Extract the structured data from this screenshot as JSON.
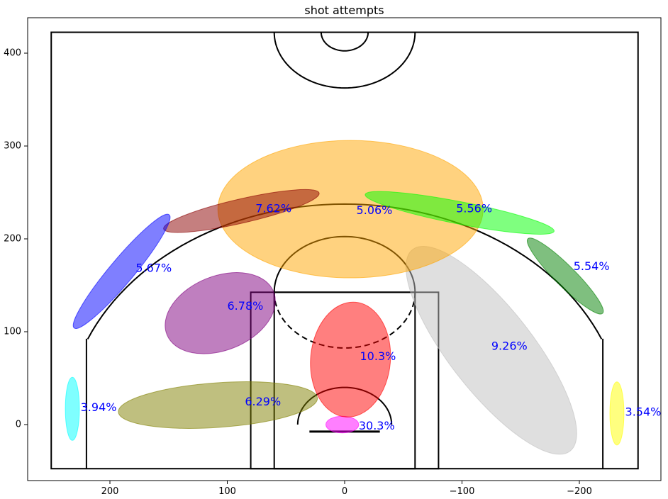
{
  "chart_data": {
    "type": "scatter",
    "title": "shot attempts",
    "xlabel": "",
    "ylabel": "",
    "xlim": [
      270,
      -270
    ],
    "ylim": [
      -60,
      440
    ],
    "x_ticks": [
      200,
      100,
      0,
      -100,
      -200
    ],
    "x_tick_labels": [
      "200",
      "100",
      "0",
      "−100",
      "−200"
    ],
    "y_ticks": [
      0,
      100,
      200,
      300,
      400
    ],
    "y_tick_labels": [
      "0",
      "100",
      "200",
      "300",
      "400"
    ],
    "grid": false,
    "label_color": "#0000ff",
    "zones": [
      {
        "label": "30.3%",
        "cx": 2,
        "cy": 0,
        "rx": 14,
        "ry": 9,
        "angle": 0,
        "color": "#ff00ff"
      },
      {
        "label": "10.3%",
        "cx": -5,
        "cy": 70,
        "rx": 34,
        "ry": 62,
        "angle": -5,
        "color": "#ff0000"
      },
      {
        "label": "6.29%",
        "cx": 108,
        "cy": 21,
        "rx": 85,
        "ry": 24,
        "angle": 4,
        "color": "#808000"
      },
      {
        "label": "6.78%",
        "cx": 106,
        "cy": 120,
        "rx": 49,
        "ry": 40,
        "angle": 22,
        "color": "#800080"
      },
      {
        "label": "9.26%",
        "cx": -125,
        "cy": 80,
        "rx": 109,
        "ry": 45,
        "angle": -52,
        "color": "#c0c0c0"
      },
      {
        "label": "5.06%",
        "cx": -5,
        "cy": 232,
        "rx": 113,
        "ry": 74,
        "angle": 0,
        "color": "#ffa500"
      },
      {
        "label": "7.62%",
        "cx": 88,
        "cy": 230,
        "rx": 68,
        "ry": 13,
        "angle": 13,
        "color": "#8b0000"
      },
      {
        "label": "5.56%",
        "cx": -98,
        "cy": 228,
        "rx": 82,
        "ry": 12,
        "angle": -11,
        "color": "#00ff00"
      },
      {
        "label": "5.67%",
        "cx": 190,
        "cy": 165,
        "rx": 63,
        "ry": 13,
        "angle": 50,
        "color": "#0000ff"
      },
      {
        "label": "5.54%",
        "cx": -188,
        "cy": 160,
        "rx": 45,
        "ry": 11,
        "angle": -45,
        "color": "#008000"
      },
      {
        "label": "3.94%",
        "cx": 232,
        "cy": 17,
        "rx": 6,
        "ry": 34,
        "angle": 0,
        "color": "#00ffff"
      },
      {
        "label": "3.54%",
        "cx": -232,
        "cy": 12,
        "rx": 6,
        "ry": 34,
        "angle": 0,
        "color": "#ffff00"
      }
    ],
    "label_positions": [
      {
        "x": -12,
        "y": -2
      },
      {
        "x": -13,
        "y": 73
      },
      {
        "x": 85,
        "y": 24
      },
      {
        "x": 100,
        "y": 127
      },
      {
        "x": -125,
        "y": 84
      },
      {
        "x": -10,
        "y": 230
      },
      {
        "x": 76,
        "y": 232
      },
      {
        "x": -95,
        "y": 232
      },
      {
        "x": 178,
        "y": 168
      },
      {
        "x": -195,
        "y": 170
      },
      {
        "x": 225,
        "y": 18
      },
      {
        "x": -239,
        "y": 13
      }
    ]
  }
}
